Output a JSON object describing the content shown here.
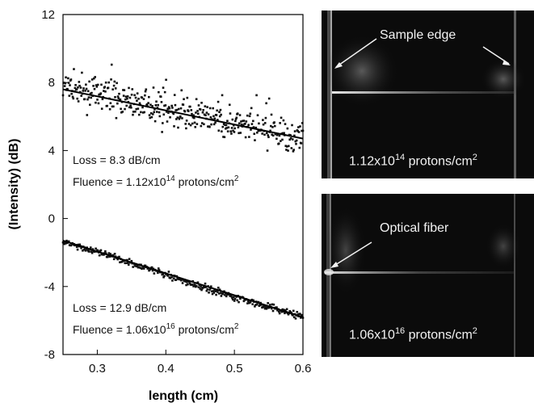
{
  "chart_data": {
    "type": "scatter",
    "xlabel": "length (cm)",
    "ylabel": "(Intensity) (dB)",
    "xlim": [
      0.25,
      0.6
    ],
    "ylim": [
      -8,
      12
    ],
    "xticks": [
      "0.3",
      "0.4",
      "0.5",
      "0.6"
    ],
    "yticks": [
      "-8",
      "-4",
      "0",
      "4",
      "8",
      "12"
    ],
    "grid": false,
    "series": [
      {
        "scatter_trend": [
          [
            0.25,
            7.7
          ],
          [
            0.3,
            7.3
          ],
          [
            0.35,
            6.9
          ],
          [
            0.4,
            6.4
          ],
          [
            0.45,
            6.0
          ],
          [
            0.5,
            5.5
          ],
          [
            0.55,
            5.1
          ],
          [
            0.6,
            4.7
          ]
        ],
        "fit_line": [
          [
            0.25,
            7.6
          ],
          [
            0.6,
            4.7
          ]
        ],
        "noise_db": 0.45,
        "loss_text": "Loss = 8.3 dB/cm",
        "fluence_prefix": "Fluence = 1.12x10",
        "fluence_exp": "14",
        "fluence_unit": " protons/cm",
        "fluence_unit_exp": "2"
      },
      {
        "scatter_trend": [
          [
            0.25,
            -1.3
          ],
          [
            0.3,
            -2.0
          ],
          [
            0.35,
            -2.6
          ],
          [
            0.4,
            -3.3
          ],
          [
            0.45,
            -4.0
          ],
          [
            0.5,
            -4.6
          ],
          [
            0.55,
            -5.2
          ],
          [
            0.6,
            -5.8
          ]
        ],
        "fit_line": [
          [
            0.25,
            -1.3
          ],
          [
            0.6,
            -5.8
          ]
        ],
        "noise_db": 0.1,
        "loss_text": "Loss = 12.9 dB/cm",
        "fluence_prefix": "Fluence = 1.06x10",
        "fluence_exp": "16",
        "fluence_unit": " protons/cm",
        "fluence_unit_exp": "2"
      }
    ]
  },
  "images": {
    "top": {
      "label_prefix": "1.12x10",
      "label_exp": "14",
      "label_unit": "protons/cm",
      "label_unit_exp": "2",
      "annotation": "Sample edge"
    },
    "bottom": {
      "label_prefix": "1.06x10",
      "label_exp": "16",
      "label_unit": "protons/cm",
      "label_unit_exp": "2",
      "annotation": "Optical fiber"
    }
  },
  "colors": {
    "points": "#111111",
    "fit_line": "#000000",
    "panel_bg": "#0b0b0b",
    "panel_text": "#f2f2f2"
  }
}
